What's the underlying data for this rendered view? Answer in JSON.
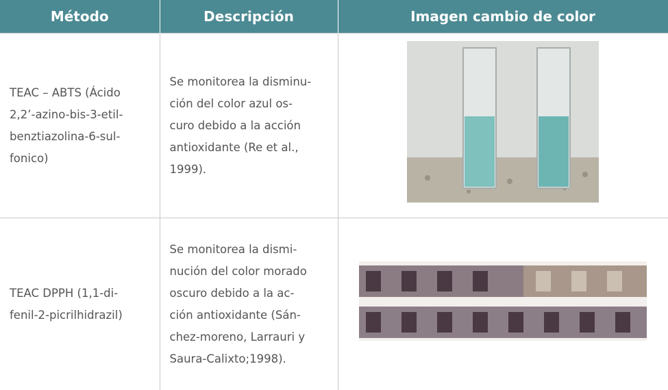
{
  "table": {
    "headers": [
      "Método",
      "Descripción",
      "Imagen cambio de color"
    ],
    "rows": [
      [
        [
          "TEAC – ABTS (Ácido",
          "2,2’-azino-bis-3-etil-",
          "benztiazolina-6-sul-",
          "fonico)"
        ],
        [
          "Se monitorea la disminu-",
          "ción del color azul os-",
          "curo debido a la acción",
          "antioxidante (Re et al.,",
          "1999)."
        ]
      ],
      [
        [
          "TEAC DPPH (1,1-di-",
          "fenil-2-picrilhidrazil)"
        ],
        [
          "Se monitorea la dismi-",
          "nución del color morado",
          "oscuro debido a la ac-",
          "ción antioxidante (Sán-",
          "chez-moreno, Larrauri y",
          "Saura-Calixto;1998)."
        ]
      ]
    ]
  }
}
